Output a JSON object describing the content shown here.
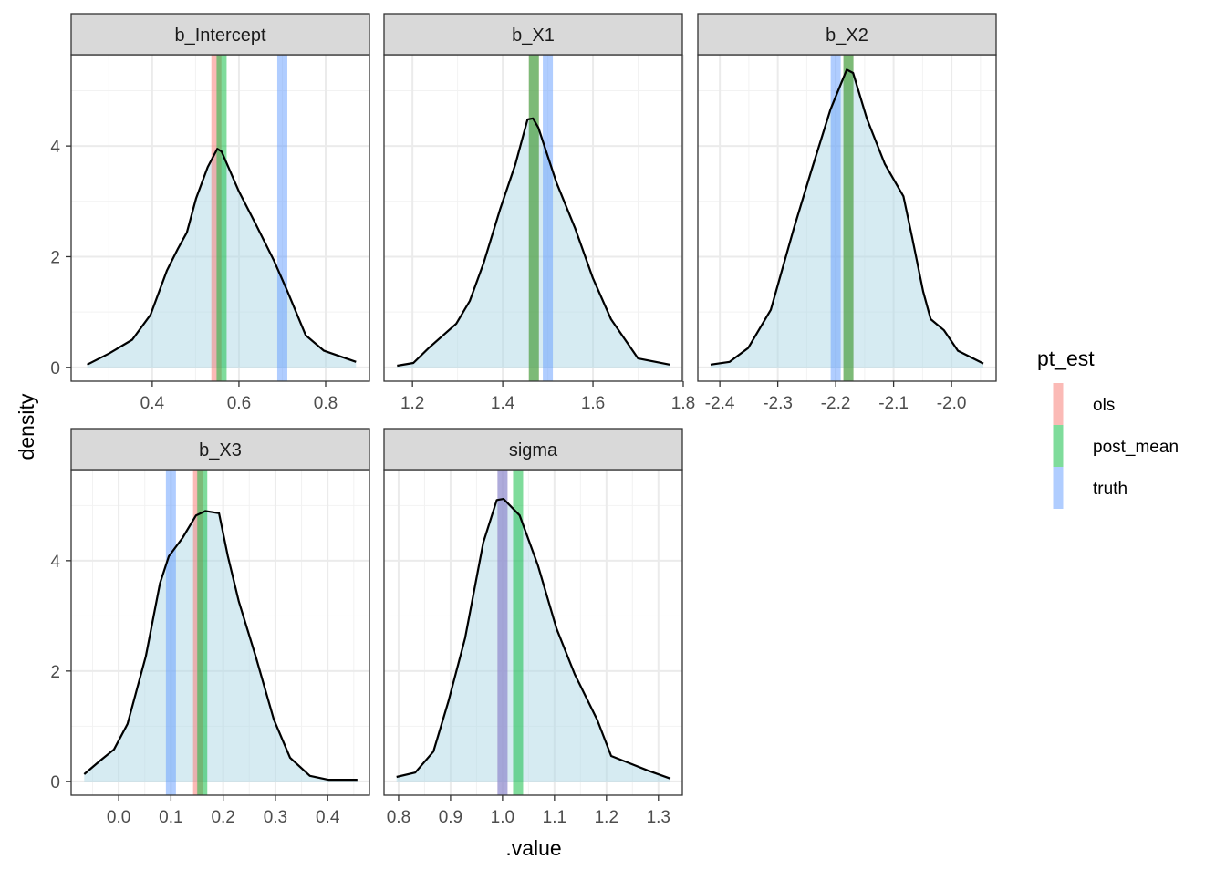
{
  "chart_data": {
    "type": "area",
    "xlabel": ".value",
    "ylabel": "density",
    "ylim": [
      -0.25,
      5.65
    ],
    "y_ticks": [
      0,
      2,
      4
    ],
    "grid": true,
    "legend": {
      "title": "pt_est",
      "placement": "right",
      "entries": [
        {
          "name": "ols",
          "color": "#F8766D"
        },
        {
          "name": "post_mean",
          "color": "#00BA38"
        },
        {
          "name": "truth",
          "color": "#619CFF"
        }
      ]
    },
    "fill_color": "#ADD8E6",
    "panels": [
      {
        "title": "b_Intercept",
        "xlim": [
          0.213,
          0.901
        ],
        "x_ticks": [
          0.4,
          0.6,
          0.8
        ],
        "x_tick_labels": [
          "0.4",
          "0.6",
          "0.8"
        ],
        "density": [
          [
            0.25,
            0.05
          ],
          [
            0.3,
            0.25
          ],
          [
            0.354,
            0.5
          ],
          [
            0.396,
            0.95
          ],
          [
            0.434,
            1.75
          ],
          [
            0.459,
            2.14
          ],
          [
            0.48,
            2.44
          ],
          [
            0.501,
            3.05
          ],
          [
            0.528,
            3.62
          ],
          [
            0.55,
            3.95
          ],
          [
            0.56,
            3.9
          ],
          [
            0.6,
            3.18
          ],
          [
            0.638,
            2.6
          ],
          [
            0.68,
            1.94
          ],
          [
            0.712,
            1.37
          ],
          [
            0.754,
            0.58
          ],
          [
            0.796,
            0.3
          ],
          [
            0.87,
            0.1
          ]
        ],
        "lines": {
          "ols": 0.548,
          "post_mean": 0.56,
          "truth": 0.7
        }
      },
      {
        "title": "b_X1",
        "xlim": [
          1.137,
          1.798
        ],
        "x_ticks": [
          1.2,
          1.4,
          1.6,
          1.8
        ],
        "x_tick_labels": [
          "1.2",
          "1.4",
          "1.6",
          "1.8"
        ],
        "density": [
          [
            1.166,
            0.03
          ],
          [
            1.202,
            0.08
          ],
          [
            1.236,
            0.35
          ],
          [
            1.297,
            0.79
          ],
          [
            1.327,
            1.2
          ],
          [
            1.358,
            1.89
          ],
          [
            1.394,
            2.85
          ],
          [
            1.428,
            3.67
          ],
          [
            1.455,
            4.48
          ],
          [
            1.467,
            4.5
          ],
          [
            1.479,
            4.33
          ],
          [
            1.519,
            3.34
          ],
          [
            1.56,
            2.52
          ],
          [
            1.6,
            1.61
          ],
          [
            1.64,
            0.87
          ],
          [
            1.7,
            0.16
          ],
          [
            1.77,
            0.05
          ]
        ],
        "lines": {
          "ols": 1.469,
          "post_mean": 1.469,
          "truth": 1.5
        }
      },
      {
        "title": "b_X2",
        "xlim": [
          -2.438,
          -1.923
        ],
        "x_ticks": [
          -2.4,
          -2.3,
          -2.2,
          -2.1,
          -2.0
        ],
        "x_tick_labels": [
          "-2.4",
          "-2.3",
          "-2.2",
          "-2.1",
          "-2.0"
        ],
        "density": [
          [
            -2.416,
            0.05
          ],
          [
            -2.383,
            0.1
          ],
          [
            -2.351,
            0.35
          ],
          [
            -2.312,
            1.04
          ],
          [
            -2.272,
            2.52
          ],
          [
            -2.241,
            3.59
          ],
          [
            -2.209,
            4.66
          ],
          [
            -2.181,
            5.38
          ],
          [
            -2.17,
            5.32
          ],
          [
            -2.146,
            4.49
          ],
          [
            -2.115,
            3.67
          ],
          [
            -2.083,
            3.09
          ],
          [
            -2.068,
            2.35
          ],
          [
            -2.049,
            1.37
          ],
          [
            -2.036,
            0.87
          ],
          [
            -2.013,
            0.67
          ],
          [
            -1.989,
            0.3
          ],
          [
            -1.945,
            0.07
          ]
        ],
        "lines": {
          "ols": -2.178,
          "post_mean": -2.178,
          "truth": -2.2
        }
      },
      {
        "title": "b_X3",
        "xlim": [
          -0.091,
          0.48
        ],
        "x_ticks": [
          0.0,
          0.1,
          0.2,
          0.3,
          0.4
        ],
        "x_tick_labels": [
          "0.0",
          "0.1",
          "0.2",
          "0.3",
          "0.4"
        ],
        "density": [
          [
            -0.066,
            0.13
          ],
          [
            -0.035,
            0.38
          ],
          [
            -0.009,
            0.58
          ],
          [
            0.017,
            1.04
          ],
          [
            0.052,
            2.27
          ],
          [
            0.079,
            3.59
          ],
          [
            0.096,
            4.08
          ],
          [
            0.122,
            4.41
          ],
          [
            0.148,
            4.82
          ],
          [
            0.166,
            4.9
          ],
          [
            0.192,
            4.86
          ],
          [
            0.209,
            4.08
          ],
          [
            0.23,
            3.26
          ],
          [
            0.262,
            2.27
          ],
          [
            0.297,
            1.12
          ],
          [
            0.328,
            0.43
          ],
          [
            0.366,
            0.1
          ],
          [
            0.401,
            0.03
          ],
          [
            0.457,
            0.03
          ]
        ],
        "lines": {
          "ols": 0.152,
          "post_mean": 0.16,
          "truth": 0.1
        }
      },
      {
        "title": "sigma",
        "xlim": [
          0.772,
          1.346
        ],
        "x_ticks": [
          0.8,
          0.9,
          1.0,
          1.1,
          1.2,
          1.3
        ],
        "x_tick_labels": [
          "0.8",
          "0.9",
          "1.0",
          "1.1",
          "1.2",
          "1.3"
        ],
        "density": [
          [
            0.796,
            0.08
          ],
          [
            0.832,
            0.16
          ],
          [
            0.867,
            0.54
          ],
          [
            0.896,
            1.45
          ],
          [
            0.928,
            2.6
          ],
          [
            0.963,
            4.33
          ],
          [
            0.989,
            5.1
          ],
          [
            1.002,
            5.12
          ],
          [
            1.033,
            4.82
          ],
          [
            1.068,
            3.92
          ],
          [
            1.104,
            2.77
          ],
          [
            1.139,
            1.94
          ],
          [
            1.182,
            1.12
          ],
          [
            1.209,
            0.46
          ],
          [
            1.244,
            0.33
          ],
          [
            1.279,
            0.2
          ],
          [
            1.323,
            0.05
          ]
        ],
        "lines": {
          "ols": 1.0,
          "post_mean": 1.03,
          "truth": 1.0
        }
      }
    ]
  }
}
